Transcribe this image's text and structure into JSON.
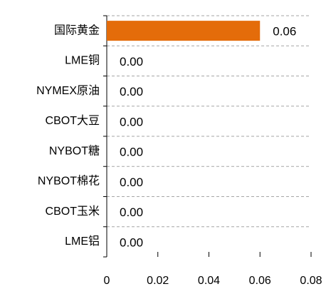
{
  "chart_data": {
    "type": "bar",
    "orientation": "horizontal",
    "categories": [
      "国际黄金",
      "LME铜",
      "NYMEX原油",
      "CBOT大豆",
      "NYBOT糖",
      "NYBOT棉花",
      "CBOT玉米",
      "LME铝"
    ],
    "values": [
      0.06,
      0,
      0,
      0,
      0,
      0,
      0,
      0
    ],
    "value_labels": [
      "0.06",
      "0.00",
      "0.00",
      "0.00",
      "0.00",
      "0.00",
      "0.00",
      "0.00"
    ],
    "color": "#e46c0a",
    "xlim": [
      0,
      0.08
    ],
    "xticks": [
      0,
      0.02,
      0.04,
      0.06,
      0.08
    ]
  }
}
